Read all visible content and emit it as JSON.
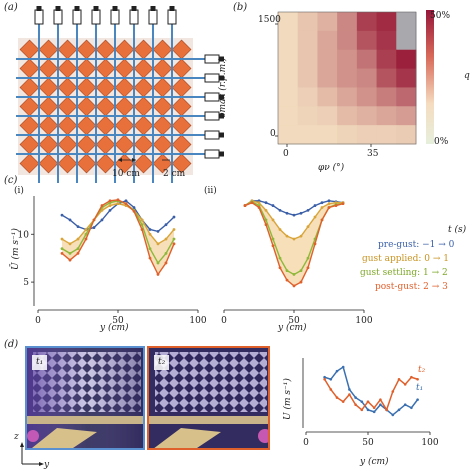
{
  "panels": {
    "a": "(a)",
    "b": "(b)",
    "c": "(c)",
    "d": "(d)"
  },
  "panel_a": {
    "scale_left": "10 cm",
    "scale_right": "2 cm"
  },
  "panel_b": {
    "ylabel": "υmax (r.p.m.)",
    "xlabel": "φν (°)",
    "yticks": [
      "1500",
      "0"
    ],
    "xticks": [
      "0",
      "35"
    ],
    "colorbar_top": "50%",
    "colorbar_bottom": "0%",
    "colorbar_label": "q"
  },
  "panel_c": {
    "sub_i": "(i)",
    "sub_ii": "(ii)",
    "ylabel": "Ū (m s⁻¹)",
    "xlabel": "y (cm)",
    "legend_title": "t (s)",
    "legend": [
      {
        "label": "pre-gust: −1 → 0",
        "color": "#3a5fa8"
      },
      {
        "label": "gust applied: 0 → 1",
        "color": "#d9a53a"
      },
      {
        "label": "gust settling: 1 → 2",
        "color": "#8fb83a"
      },
      {
        "label": "post-gust: 2 → 3",
        "color": "#e0602c"
      }
    ],
    "colors": {
      "pre": "#3a5fa8",
      "applied": "#d9a53a",
      "settling": "#8fb83a",
      "post": "#e0602c",
      "band": "#f0c98a"
    }
  },
  "panel_d": {
    "photo1_label": "t₁",
    "photo2_label": "t₂",
    "axis_z": "z",
    "axis_y": "y",
    "ylabel": "U (m s⁻¹)",
    "xlabel": "y (cm)",
    "line_t1": "t₁",
    "line_t2": "t₂",
    "colors": {
      "t1": "#3a6fb0",
      "t2": "#e0602c"
    }
  },
  "chart_data": [
    {
      "type": "heatmap",
      "title": "",
      "xlabel": "φν (°)",
      "ylabel": "υmax (r.p.m.)",
      "xticks": [
        0,
        35
      ],
      "yticks": [
        0,
        1500
      ],
      "colorbar": {
        "min": "0%",
        "max": "50%",
        "label": "q"
      },
      "note": "7x7 grid; upper-right cells grey (no data)"
    },
    {
      "type": "line",
      "subplot": "(i)",
      "xlabel": "y (cm)",
      "ylabel": "Ū (m s⁻¹)",
      "xlim": [
        0,
        100
      ],
      "ylim": [
        2.5,
        14
      ],
      "x": [
        15,
        20,
        25,
        30,
        35,
        40,
        45,
        50,
        55,
        60,
        65,
        70,
        75,
        80,
        85
      ],
      "series": [
        {
          "name": "pre-gust: −1 → 0",
          "values": [
            12,
            11.5,
            10.8,
            10.5,
            10.7,
            11.5,
            12.5,
            13.2,
            13.5,
            12.8,
            11.5,
            10.5,
            10.3,
            11.0,
            11.8
          ]
        },
        {
          "name": "gust applied: 0 → 1",
          "values": [
            9.5,
            9,
            9.5,
            10.5,
            11.5,
            12.5,
            13,
            13.2,
            13,
            12.5,
            11.5,
            10,
            9,
            9.5,
            10.5
          ]
        },
        {
          "name": "gust settling: 1 → 2",
          "values": [
            8.5,
            8,
            8.5,
            10,
            11.5,
            12.8,
            13.3,
            13.5,
            13.2,
            12.5,
            11,
            8.5,
            7,
            8,
            9.5
          ]
        },
        {
          "name": "post-gust: 2 → 3",
          "values": [
            8,
            7.3,
            8,
            9.5,
            11.5,
            13,
            13.5,
            13.6,
            13.2,
            12.4,
            10.5,
            7.5,
            5.8,
            7,
            9
          ]
        }
      ]
    },
    {
      "type": "line",
      "subplot": "(ii)",
      "xlabel": "y (cm)",
      "xlim": [
        0,
        100
      ],
      "ylim": [
        2.5,
        14
      ],
      "x": [
        15,
        20,
        25,
        30,
        35,
        40,
        45,
        50,
        55,
        60,
        65,
        70,
        75,
        80,
        85
      ],
      "series": [
        {
          "name": "pre-gust: −1 → 0",
          "values": [
            13,
            13.5,
            13.5,
            13.3,
            13,
            12.5,
            12.2,
            12,
            12.2,
            12.5,
            13,
            13.3,
            13.5,
            13.4,
            13.3
          ]
        },
        {
          "name": "gust applied: 0 → 1",
          "values": [
            13,
            13.5,
            13.3,
            12.5,
            11.5,
            10.5,
            9.8,
            9.5,
            9.8,
            10.8,
            11.8,
            12.8,
            13.2,
            13.3,
            13.3
          ]
        },
        {
          "name": "gust settling: 1 → 2",
          "values": [
            13,
            13.4,
            13,
            11.5,
            9.5,
            7.5,
            6.2,
            5.8,
            6.2,
            7.5,
            9.5,
            11.5,
            12.8,
            13.1,
            13.2
          ]
        },
        {
          "name": "post-gust: 2 → 3",
          "values": [
            13,
            13.3,
            12.8,
            11,
            8.8,
            6.5,
            5.2,
            4.6,
            5,
            6.5,
            9,
            11.5,
            12.8,
            13,
            13.2
          ]
        }
      ]
    },
    {
      "type": "line",
      "subplot": "(d)",
      "xlabel": "y (cm)",
      "ylabel": "U (m s⁻¹)",
      "xlim": [
        0,
        100
      ],
      "x": [
        15,
        20,
        25,
        30,
        35,
        40,
        45,
        50,
        55,
        60,
        65,
        70,
        75,
        80,
        85,
        90
      ],
      "series": [
        {
          "name": "t₁",
          "values": [
            0.62,
            0.6,
            0.68,
            0.72,
            0.5,
            0.42,
            0.38,
            0.3,
            0.28,
            0.35,
            0.3,
            0.25,
            0.3,
            0.35,
            0.32,
            0.4
          ]
        },
        {
          "name": "t₂",
          "values": [
            0.6,
            0.5,
            0.42,
            0.38,
            0.45,
            0.35,
            0.3,
            0.38,
            0.32,
            0.4,
            0.3,
            0.48,
            0.6,
            0.55,
            0.62,
            0.6
          ]
        }
      ]
    }
  ]
}
